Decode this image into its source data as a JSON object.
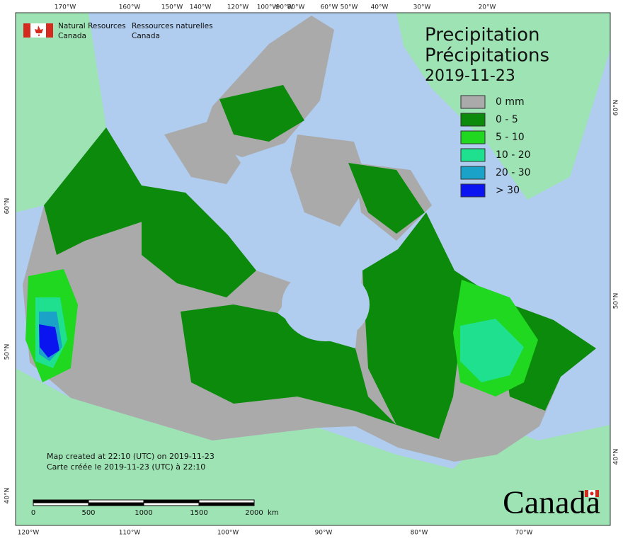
{
  "graticule": {
    "top": [
      "170°W",
      "160°W",
      "150°W",
      "140°W",
      "120°W",
      "100°W",
      "90°W",
      "80°W",
      "60°W",
      "50°W",
      "40°W",
      "30°W",
      "20°W"
    ],
    "bottom": [
      "120°W",
      "110°W",
      "100°W",
      "90°W",
      "80°W",
      "70°W"
    ],
    "left": [
      "60°N",
      "50°N",
      "40°N"
    ],
    "right": [
      "60°N",
      "50°N",
      "40°N"
    ]
  },
  "header": {
    "en": [
      "Natural Resources",
      "Canada"
    ],
    "fr": [
      "Ressources naturelles",
      "Canada"
    ]
  },
  "title": {
    "line1": "Precipitation",
    "line2": "Précipitations",
    "date": "2019-11-23"
  },
  "legend": [
    {
      "label": "0 mm",
      "color": "#aaaaaa"
    },
    {
      "label": "0 - 5",
      "color": "#0b8a0b"
    },
    {
      "label": "5 - 10",
      "color": "#1fd81f"
    },
    {
      "label": "10 - 20",
      "color": "#1fe08e"
    },
    {
      "label": "20 - 30",
      "color": "#1aa2c8"
    },
    {
      "label": "> 30",
      "color": "#0a14f0"
    }
  ],
  "footer": [
    "Map created at 22:10 (UTC) on 2019-11-23",
    "Carte créée le 2019-11-23 (UTC) à 22:10"
  ],
  "scale": {
    "labels": [
      "0",
      "500",
      "1000",
      "1500",
      "2000"
    ],
    "unit": "km"
  },
  "wordmark": "Canada"
}
